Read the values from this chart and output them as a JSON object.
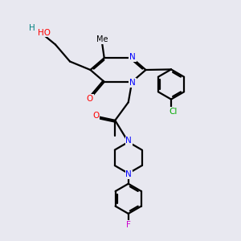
{
  "bg_color": "#e8e8f0",
  "atom_colors": {
    "C": "#000000",
    "N": "#0000ff",
    "O": "#ff0000",
    "H": "#008080",
    "F": "#cc00cc",
    "Cl": "#00aa00"
  },
  "bond_color": "#000000",
  "bond_width": 1.6,
  "dbo": 0.06
}
